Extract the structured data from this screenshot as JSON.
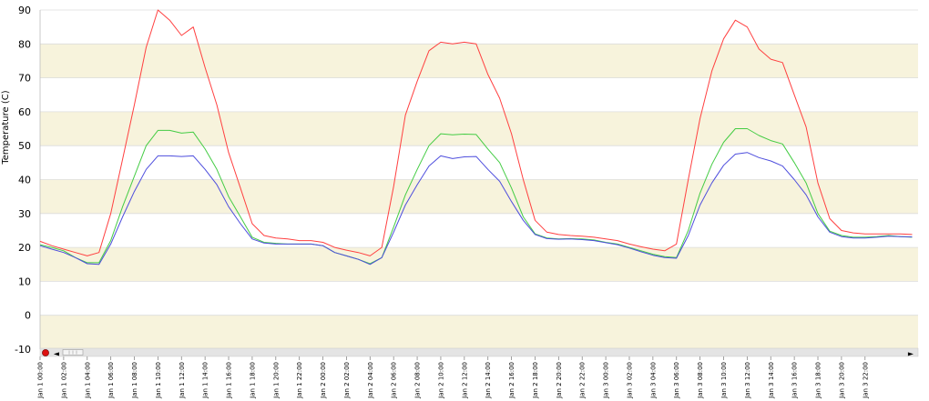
{
  "chart_data": {
    "type": "line",
    "title": "",
    "xlabel": "",
    "ylabel": "Temperature (C)",
    "ylim": [
      -10,
      90
    ],
    "yticks": [
      -10,
      0,
      10,
      20,
      30,
      40,
      50,
      60,
      70,
      80,
      90
    ],
    "grid": "alternating horizontal bands",
    "legend": "none",
    "xlim": [
      "Jan 1 00:00",
      "Jan 3 23:00"
    ],
    "xtick_labels": [
      "Jan 1 00:00",
      "Jan 1 02:00",
      "Jan 1 04:00",
      "Jan 1 06:00",
      "Jan 1 08:00",
      "Jan 1 10:00",
      "Jan 1 12:00",
      "Jan 1 14:00",
      "Jan 1 16:00",
      "Jan 1 18:00",
      "Jan 1 20:00",
      "Jan 1 22:00",
      "Jan 2 00:00",
      "Jan 2 02:00",
      "Jan 2 04:00",
      "Jan 2 06:00",
      "Jan 2 08:00",
      "Jan 2 10:00",
      "Jan 2 12:00",
      "Jan 2 14:00",
      "Jan 2 16:00",
      "Jan 2 18:00",
      "Jan 2 20:00",
      "Jan 2 22:00",
      "Jan 3 00:00",
      "Jan 3 02:00",
      "Jan 3 04:00",
      "Jan 3 06:00",
      "Jan 3 08:00",
      "Jan 3 10:00",
      "Jan 3 12:00",
      "Jan 3 14:00",
      "Jan 3 16:00",
      "Jan 3 18:00",
      "Jan 3 20:00",
      "Jan 3 22:00"
    ],
    "series": [
      {
        "color": "#ff4040",
        "values": [
          21.8,
          20.5,
          19.5,
          18.5,
          17.5,
          18.5,
          30,
          46,
          62,
          79,
          90,
          87,
          82.5,
          85,
          73,
          62,
          48,
          37.5,
          27,
          23.5,
          22.8,
          22.5,
          22,
          22,
          21.5,
          20,
          19.2,
          18.5,
          17.5,
          20,
          38,
          59,
          69,
          78,
          80.5,
          80,
          80.5,
          80,
          71,
          64,
          53.5,
          40,
          28,
          24.5,
          23.8,
          23.5,
          23.3,
          23,
          22.5,
          22,
          21,
          20.2,
          19.5,
          19,
          21,
          40,
          58,
          72,
          81.5,
          87,
          85,
          78.5,
          75.5,
          74.5,
          65,
          55.5,
          39,
          28.5,
          25,
          24.3,
          24,
          24,
          24,
          24,
          23.8
        ]
      },
      {
        "color": "#44cc44",
        "values": [
          20.8,
          20,
          19,
          17,
          15.5,
          15.5,
          22,
          32,
          41,
          50,
          54.5,
          54.5,
          53.7,
          54,
          49,
          43,
          35,
          29,
          23,
          21.5,
          21.2,
          21,
          21,
          21,
          20.5,
          18.5,
          17.5,
          16.5,
          15.2,
          17,
          26,
          35.5,
          43,
          50,
          53.5,
          53.2,
          53.4,
          53.3,
          49,
          45,
          37.5,
          29,
          24,
          22.8,
          22.5,
          22.6,
          22.5,
          22.2,
          21.5,
          21,
          20,
          19,
          18,
          17.3,
          17,
          25,
          36,
          44.5,
          51,
          55,
          55,
          53,
          51.5,
          50.5,
          45,
          39,
          30,
          24.8,
          23.5,
          23,
          23,
          23.2,
          23.5,
          23.2,
          23
        ]
      },
      {
        "color": "#4d4ddd",
        "values": [
          20.5,
          19.5,
          18.5,
          17,
          15.2,
          15,
          21,
          29,
          36.5,
          43,
          47,
          47,
          46.8,
          47,
          43,
          38.5,
          32,
          27,
          22.5,
          21.3,
          21,
          21,
          21,
          21,
          20.5,
          18.5,
          17.5,
          16.5,
          15,
          17,
          24.5,
          32.5,
          38.5,
          44,
          47,
          46.2,
          46.7,
          46.8,
          43,
          39.5,
          33.5,
          28,
          23.8,
          22.6,
          22.4,
          22.5,
          22.3,
          22,
          21.4,
          20.8,
          19.8,
          18.7,
          17.7,
          17,
          16.8,
          23.5,
          32.5,
          39,
          44.2,
          47.5,
          48,
          46.5,
          45.5,
          44,
          40,
          35.5,
          29,
          24.5,
          23.2,
          22.8,
          22.8,
          23,
          23.3,
          23.2,
          23.1
        ]
      }
    ]
  },
  "ui": {
    "scroll_left_label": "◄",
    "scroll_right_label": "►"
  }
}
